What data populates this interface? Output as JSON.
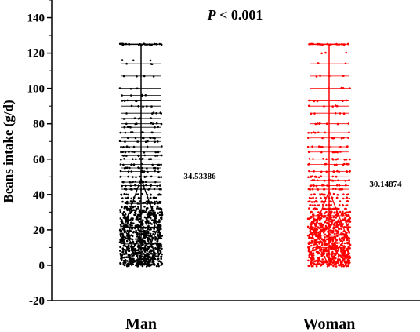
{
  "chart_data": {
    "type": "scatter",
    "title": {
      "italic_part": "P",
      "rest": " < 0.001"
    },
    "ylabel": "Beans intake (g/d)",
    "xlabel": "",
    "ylim": [
      -20,
      150
    ],
    "yticks": [
      -20,
      0,
      20,
      40,
      60,
      80,
      100,
      120,
      140
    ],
    "categories": [
      "Man",
      "Woman"
    ],
    "series": [
      {
        "category": "Man",
        "color": "#000000",
        "mean_label": "34.53386",
        "mean": 34.53,
        "median": 21.5,
        "q1": 12,
        "q3": 35,
        "diamond_top": 49,
        "diamond_bottom": 0,
        "whisker_min": 0,
        "whisker_max": 125,
        "distinct_levels": [
          0,
          1,
          2,
          3,
          4,
          5,
          6,
          7,
          8,
          9,
          10,
          11,
          12,
          13,
          14,
          15,
          16,
          17,
          18,
          19,
          20,
          21,
          22,
          23,
          24,
          25,
          26,
          27,
          28,
          29,
          30,
          31,
          32,
          33,
          35,
          36,
          38,
          40,
          43,
          45,
          47,
          50,
          53,
          55,
          57,
          60,
          62,
          64,
          67,
          70,
          72,
          75,
          78,
          80,
          83,
          86,
          90,
          93,
          96,
          100,
          107,
          114,
          116,
          125
        ]
      },
      {
        "category": "Woman",
        "color": "#ff0000",
        "mean_label": "30.14874",
        "mean": 30.15,
        "median": 17,
        "q1": 10,
        "q3": 28,
        "diamond_top": 42,
        "diamond_bottom": 0,
        "whisker_min": 0,
        "whisker_max": 125,
        "distinct_levels": [
          0,
          1,
          2,
          3,
          4,
          5,
          6,
          7,
          8,
          9,
          10,
          11,
          12,
          13,
          14,
          15,
          16,
          17,
          18,
          19,
          20,
          21,
          22,
          23,
          24,
          25,
          26,
          27,
          28,
          29,
          30,
          32,
          34,
          36,
          38,
          40,
          43,
          45,
          48,
          50,
          53,
          57,
          60,
          64,
          67,
          72,
          75,
          80,
          86,
          90,
          93,
          100,
          107,
          114,
          120,
          125
        ]
      }
    ]
  }
}
